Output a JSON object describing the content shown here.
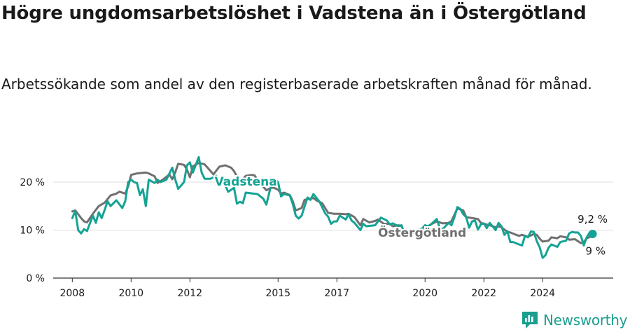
{
  "header": {
    "title": "Högre ungdomsarbetslöshet i Vadstena än i Östergötland",
    "subtitle": "Arbetssökande som andel av den registerbaserade arbetskraften månad för månad."
  },
  "brand": {
    "name": "Newsworthy",
    "icon": "newsworthy-logo-icon",
    "color": "#1a9e8f"
  },
  "chart_data": {
    "type": "line",
    "y_ticks": [
      "0 %",
      "10 %",
      "20 %"
    ],
    "x_ticks": [
      "2008",
      "2010",
      "2012",
      "2015",
      "2017",
      "2020",
      "2022",
      "2024"
    ],
    "ylim": [
      0,
      27
    ],
    "grid": true,
    "colors": {
      "vadstena": "#14a394",
      "ostergotland": "#707070"
    },
    "series": [
      {
        "name": "Vadstena",
        "color": "#14a394",
        "end_label": "9,2 %",
        "points": [
          [
            2008.0,
            12.5
          ],
          [
            2008.1,
            14.0
          ],
          [
            2008.2,
            10.0
          ],
          [
            2008.3,
            9.3
          ],
          [
            2008.4,
            10.2
          ],
          [
            2008.5,
            9.8
          ],
          [
            2008.7,
            13.0
          ],
          [
            2008.8,
            11.5
          ],
          [
            2008.9,
            13.7
          ],
          [
            2009.0,
            12.5
          ],
          [
            2009.1,
            14.2
          ],
          [
            2009.2,
            16.0
          ],
          [
            2009.3,
            15.0
          ],
          [
            2009.5,
            16.2
          ],
          [
            2009.7,
            14.6
          ],
          [
            2009.8,
            16.0
          ],
          [
            2009.9,
            20.0
          ],
          [
            2010.0,
            20.5
          ],
          [
            2010.1,
            20.0
          ],
          [
            2010.2,
            19.8
          ],
          [
            2010.3,
            17.3
          ],
          [
            2010.4,
            18.5
          ],
          [
            2010.5,
            15.0
          ],
          [
            2010.6,
            20.5
          ],
          [
            2010.8,
            19.8
          ],
          [
            2010.9,
            20.5
          ],
          [
            2011.0,
            20.0
          ],
          [
            2011.2,
            20.5
          ],
          [
            2011.4,
            23.0
          ],
          [
            2011.5,
            20.6
          ],
          [
            2011.6,
            18.6
          ],
          [
            2011.8,
            20.0
          ],
          [
            2011.9,
            23.5
          ],
          [
            2012.0,
            24.1
          ],
          [
            2012.1,
            22.0
          ],
          [
            2012.3,
            25.2
          ],
          [
            2012.4,
            22.0
          ],
          [
            2012.5,
            20.7
          ],
          [
            2012.7,
            20.7
          ],
          [
            2012.9,
            21.3
          ],
          [
            2013.0,
            19.5
          ],
          [
            2013.1,
            20.8
          ],
          [
            2013.3,
            18.0
          ],
          [
            2013.5,
            18.8
          ],
          [
            2013.6,
            15.5
          ],
          [
            2013.7,
            15.9
          ],
          [
            2013.8,
            15.6
          ],
          [
            2013.9,
            17.8
          ],
          [
            2014.3,
            17.5
          ],
          [
            2014.5,
            16.5
          ],
          [
            2014.6,
            15.3
          ],
          [
            2014.8,
            20.3
          ],
          [
            2014.9,
            20.5
          ],
          [
            2015.0,
            20.0
          ],
          [
            2015.1,
            17.0
          ],
          [
            2015.2,
            17.5
          ],
          [
            2015.4,
            17.2
          ],
          [
            2015.5,
            15.4
          ],
          [
            2015.6,
            13.0
          ],
          [
            2015.7,
            12.4
          ],
          [
            2015.8,
            13.0
          ],
          [
            2016.0,
            16.8
          ],
          [
            2016.1,
            16.3
          ],
          [
            2016.2,
            17.5
          ],
          [
            2016.4,
            16.0
          ],
          [
            2016.6,
            13.5
          ],
          [
            2016.7,
            12.8
          ],
          [
            2016.8,
            11.3
          ],
          [
            2016.9,
            11.8
          ],
          [
            2017.0,
            11.8
          ],
          [
            2017.1,
            13.0
          ],
          [
            2017.3,
            12.2
          ],
          [
            2017.4,
            13.3
          ],
          [
            2017.5,
            12.0
          ],
          [
            2017.6,
            11.5
          ],
          [
            2017.8,
            10.0
          ],
          [
            2017.9,
            11.3
          ],
          [
            2018.0,
            10.8
          ],
          [
            2018.3,
            11.0
          ],
          [
            2018.5,
            12.6
          ],
          [
            2018.7,
            12.0
          ],
          [
            2018.8,
            11.2
          ],
          [
            2018.9,
            11.4
          ],
          [
            2019.1,
            10.8
          ],
          [
            2019.2,
            11.0
          ],
          [
            2019.3,
            9.2
          ],
          [
            2019.5,
            9.2
          ],
          [
            2019.7,
            9.8
          ],
          [
            2019.9,
            10.3
          ],
          [
            2020.0,
            11.0
          ],
          [
            2020.1,
            10.8
          ],
          [
            2020.2,
            11.2
          ],
          [
            2020.4,
            12.3
          ],
          [
            2020.5,
            10.4
          ],
          [
            2020.6,
            10.2
          ],
          [
            2020.8,
            11.5
          ],
          [
            2020.9,
            11.0
          ],
          [
            2021.0,
            12.7
          ],
          [
            2021.1,
            14.8
          ],
          [
            2021.2,
            14.4
          ],
          [
            2021.3,
            13.3
          ],
          [
            2021.4,
            12.7
          ],
          [
            2021.5,
            10.5
          ],
          [
            2021.6,
            11.8
          ],
          [
            2021.7,
            12.0
          ],
          [
            2021.8,
            10.1
          ],
          [
            2021.9,
            11.2
          ],
          [
            2022.0,
            11.4
          ],
          [
            2022.1,
            10.4
          ],
          [
            2022.2,
            11.5
          ],
          [
            2022.4,
            10.0
          ],
          [
            2022.5,
            11.5
          ],
          [
            2022.6,
            10.8
          ],
          [
            2022.7,
            9.0
          ],
          [
            2022.8,
            9.8
          ],
          [
            2022.9,
            7.5
          ],
          [
            2023.0,
            7.5
          ],
          [
            2023.2,
            7.0
          ],
          [
            2023.3,
            6.8
          ],
          [
            2023.4,
            8.8
          ],
          [
            2023.5,
            8.5
          ],
          [
            2023.6,
            9.7
          ],
          [
            2023.7,
            9.6
          ],
          [
            2023.8,
            7.7
          ],
          [
            2023.9,
            6.4
          ],
          [
            2024.0,
            4.2
          ],
          [
            2024.1,
            4.8
          ],
          [
            2024.2,
            6.3
          ],
          [
            2024.3,
            7.0
          ],
          [
            2024.5,
            6.5
          ],
          [
            2024.6,
            7.5
          ],
          [
            2024.8,
            7.8
          ],
          [
            2024.9,
            9.3
          ],
          [
            2025.0,
            9.6
          ],
          [
            2025.1,
            9.5
          ],
          [
            2025.2,
            9.5
          ],
          [
            2025.3,
            8.8
          ],
          [
            2025.4,
            6.8
          ],
          [
            2025.5,
            8.5
          ],
          [
            2025.6,
            9.5
          ],
          [
            2025.7,
            9.2
          ]
        ]
      },
      {
        "name": "Östergötland",
        "color": "#707070",
        "end_label": "9 %",
        "points": [
          [
            2008.0,
            13.9
          ],
          [
            2008.1,
            14.1
          ],
          [
            2008.3,
            12.5
          ],
          [
            2008.4,
            11.8
          ],
          [
            2008.5,
            11.6
          ],
          [
            2008.7,
            13.4
          ],
          [
            2008.9,
            15.0
          ],
          [
            2009.1,
            15.7
          ],
          [
            2009.3,
            17.2
          ],
          [
            2009.5,
            17.6
          ],
          [
            2009.6,
            18.0
          ],
          [
            2009.8,
            17.6
          ],
          [
            2009.9,
            19.1
          ],
          [
            2010.0,
            21.5
          ],
          [
            2010.2,
            21.8
          ],
          [
            2010.5,
            22.0
          ],
          [
            2010.6,
            21.8
          ],
          [
            2010.8,
            21.2
          ],
          [
            2010.9,
            19.8
          ],
          [
            2011.1,
            20.6
          ],
          [
            2011.3,
            21.6
          ],
          [
            2011.4,
            20.6
          ],
          [
            2011.5,
            22.0
          ],
          [
            2011.6,
            23.8
          ],
          [
            2011.8,
            23.6
          ],
          [
            2011.9,
            22.6
          ],
          [
            2012.0,
            21.0
          ],
          [
            2012.1,
            23.3
          ],
          [
            2012.3,
            24.0
          ],
          [
            2012.5,
            23.7
          ],
          [
            2012.6,
            23.0
          ],
          [
            2012.8,
            21.6
          ],
          [
            2013.0,
            23.2
          ],
          [
            2013.2,
            23.5
          ],
          [
            2013.4,
            23.0
          ],
          [
            2013.5,
            22.3
          ],
          [
            2013.7,
            20.0
          ],
          [
            2013.8,
            20.6
          ],
          [
            2013.9,
            21.3
          ],
          [
            2014.1,
            21.5
          ],
          [
            2014.2,
            21.4
          ],
          [
            2014.3,
            20.4
          ],
          [
            2014.5,
            19.0
          ],
          [
            2014.6,
            18.3
          ],
          [
            2014.8,
            18.9
          ],
          [
            2014.9,
            18.7
          ],
          [
            2015.0,
            18.4
          ],
          [
            2015.1,
            17.6
          ],
          [
            2015.2,
            17.8
          ],
          [
            2015.4,
            17.3
          ],
          [
            2015.5,
            16.0
          ],
          [
            2015.6,
            14.1
          ],
          [
            2015.8,
            14.6
          ],
          [
            2015.9,
            16.3
          ],
          [
            2016.2,
            16.7
          ],
          [
            2016.3,
            16.2
          ],
          [
            2016.5,
            15.6
          ],
          [
            2016.6,
            14.6
          ],
          [
            2016.7,
            13.6
          ],
          [
            2016.9,
            13.4
          ],
          [
            2017.1,
            13.4
          ],
          [
            2017.3,
            13.3
          ],
          [
            2017.4,
            13.4
          ],
          [
            2017.6,
            12.7
          ],
          [
            2017.8,
            11.0
          ],
          [
            2017.9,
            12.3
          ],
          [
            2018.1,
            11.6
          ],
          [
            2018.3,
            11.9
          ],
          [
            2018.4,
            12.2
          ],
          [
            2018.6,
            11.3
          ],
          [
            2018.8,
            11.3
          ],
          [
            2018.9,
            10.8
          ],
          [
            2019.1,
            11.0
          ],
          [
            2019.2,
            10.8
          ],
          [
            2019.3,
            9.6
          ],
          [
            2019.5,
            9.7
          ],
          [
            2019.7,
            9.7
          ],
          [
            2019.8,
            10.0
          ],
          [
            2020.1,
            10.5
          ],
          [
            2020.2,
            11.2
          ],
          [
            2020.4,
            11.8
          ],
          [
            2020.6,
            11.4
          ],
          [
            2020.8,
            11.5
          ],
          [
            2020.9,
            11.9
          ],
          [
            2021.1,
            14.5
          ],
          [
            2021.3,
            14.1
          ],
          [
            2021.4,
            12.7
          ],
          [
            2021.6,
            12.5
          ],
          [
            2021.8,
            12.3
          ],
          [
            2021.9,
            11.5
          ],
          [
            2022.0,
            11.3
          ],
          [
            2022.2,
            11.0
          ],
          [
            2022.4,
            10.6
          ],
          [
            2022.5,
            10.8
          ],
          [
            2022.6,
            10.6
          ],
          [
            2022.8,
            9.6
          ],
          [
            2022.9,
            9.5
          ],
          [
            2023.1,
            9.0
          ],
          [
            2023.2,
            8.8
          ],
          [
            2023.3,
            9.0
          ],
          [
            2023.5,
            8.6
          ],
          [
            2023.7,
            9.2
          ],
          [
            2023.8,
            9.0
          ],
          [
            2023.9,
            8.2
          ],
          [
            2024.0,
            7.6
          ],
          [
            2024.2,
            7.8
          ],
          [
            2024.3,
            8.5
          ],
          [
            2024.5,
            8.3
          ],
          [
            2024.6,
            8.7
          ],
          [
            2024.8,
            8.5
          ],
          [
            2024.9,
            8.0
          ],
          [
            2025.1,
            8.1
          ],
          [
            2025.3,
            7.3
          ],
          [
            2025.4,
            7.5
          ],
          [
            2025.5,
            8.3
          ],
          [
            2025.7,
            8.8
          ],
          [
            2025.8,
            9.0
          ]
        ]
      }
    ]
  }
}
